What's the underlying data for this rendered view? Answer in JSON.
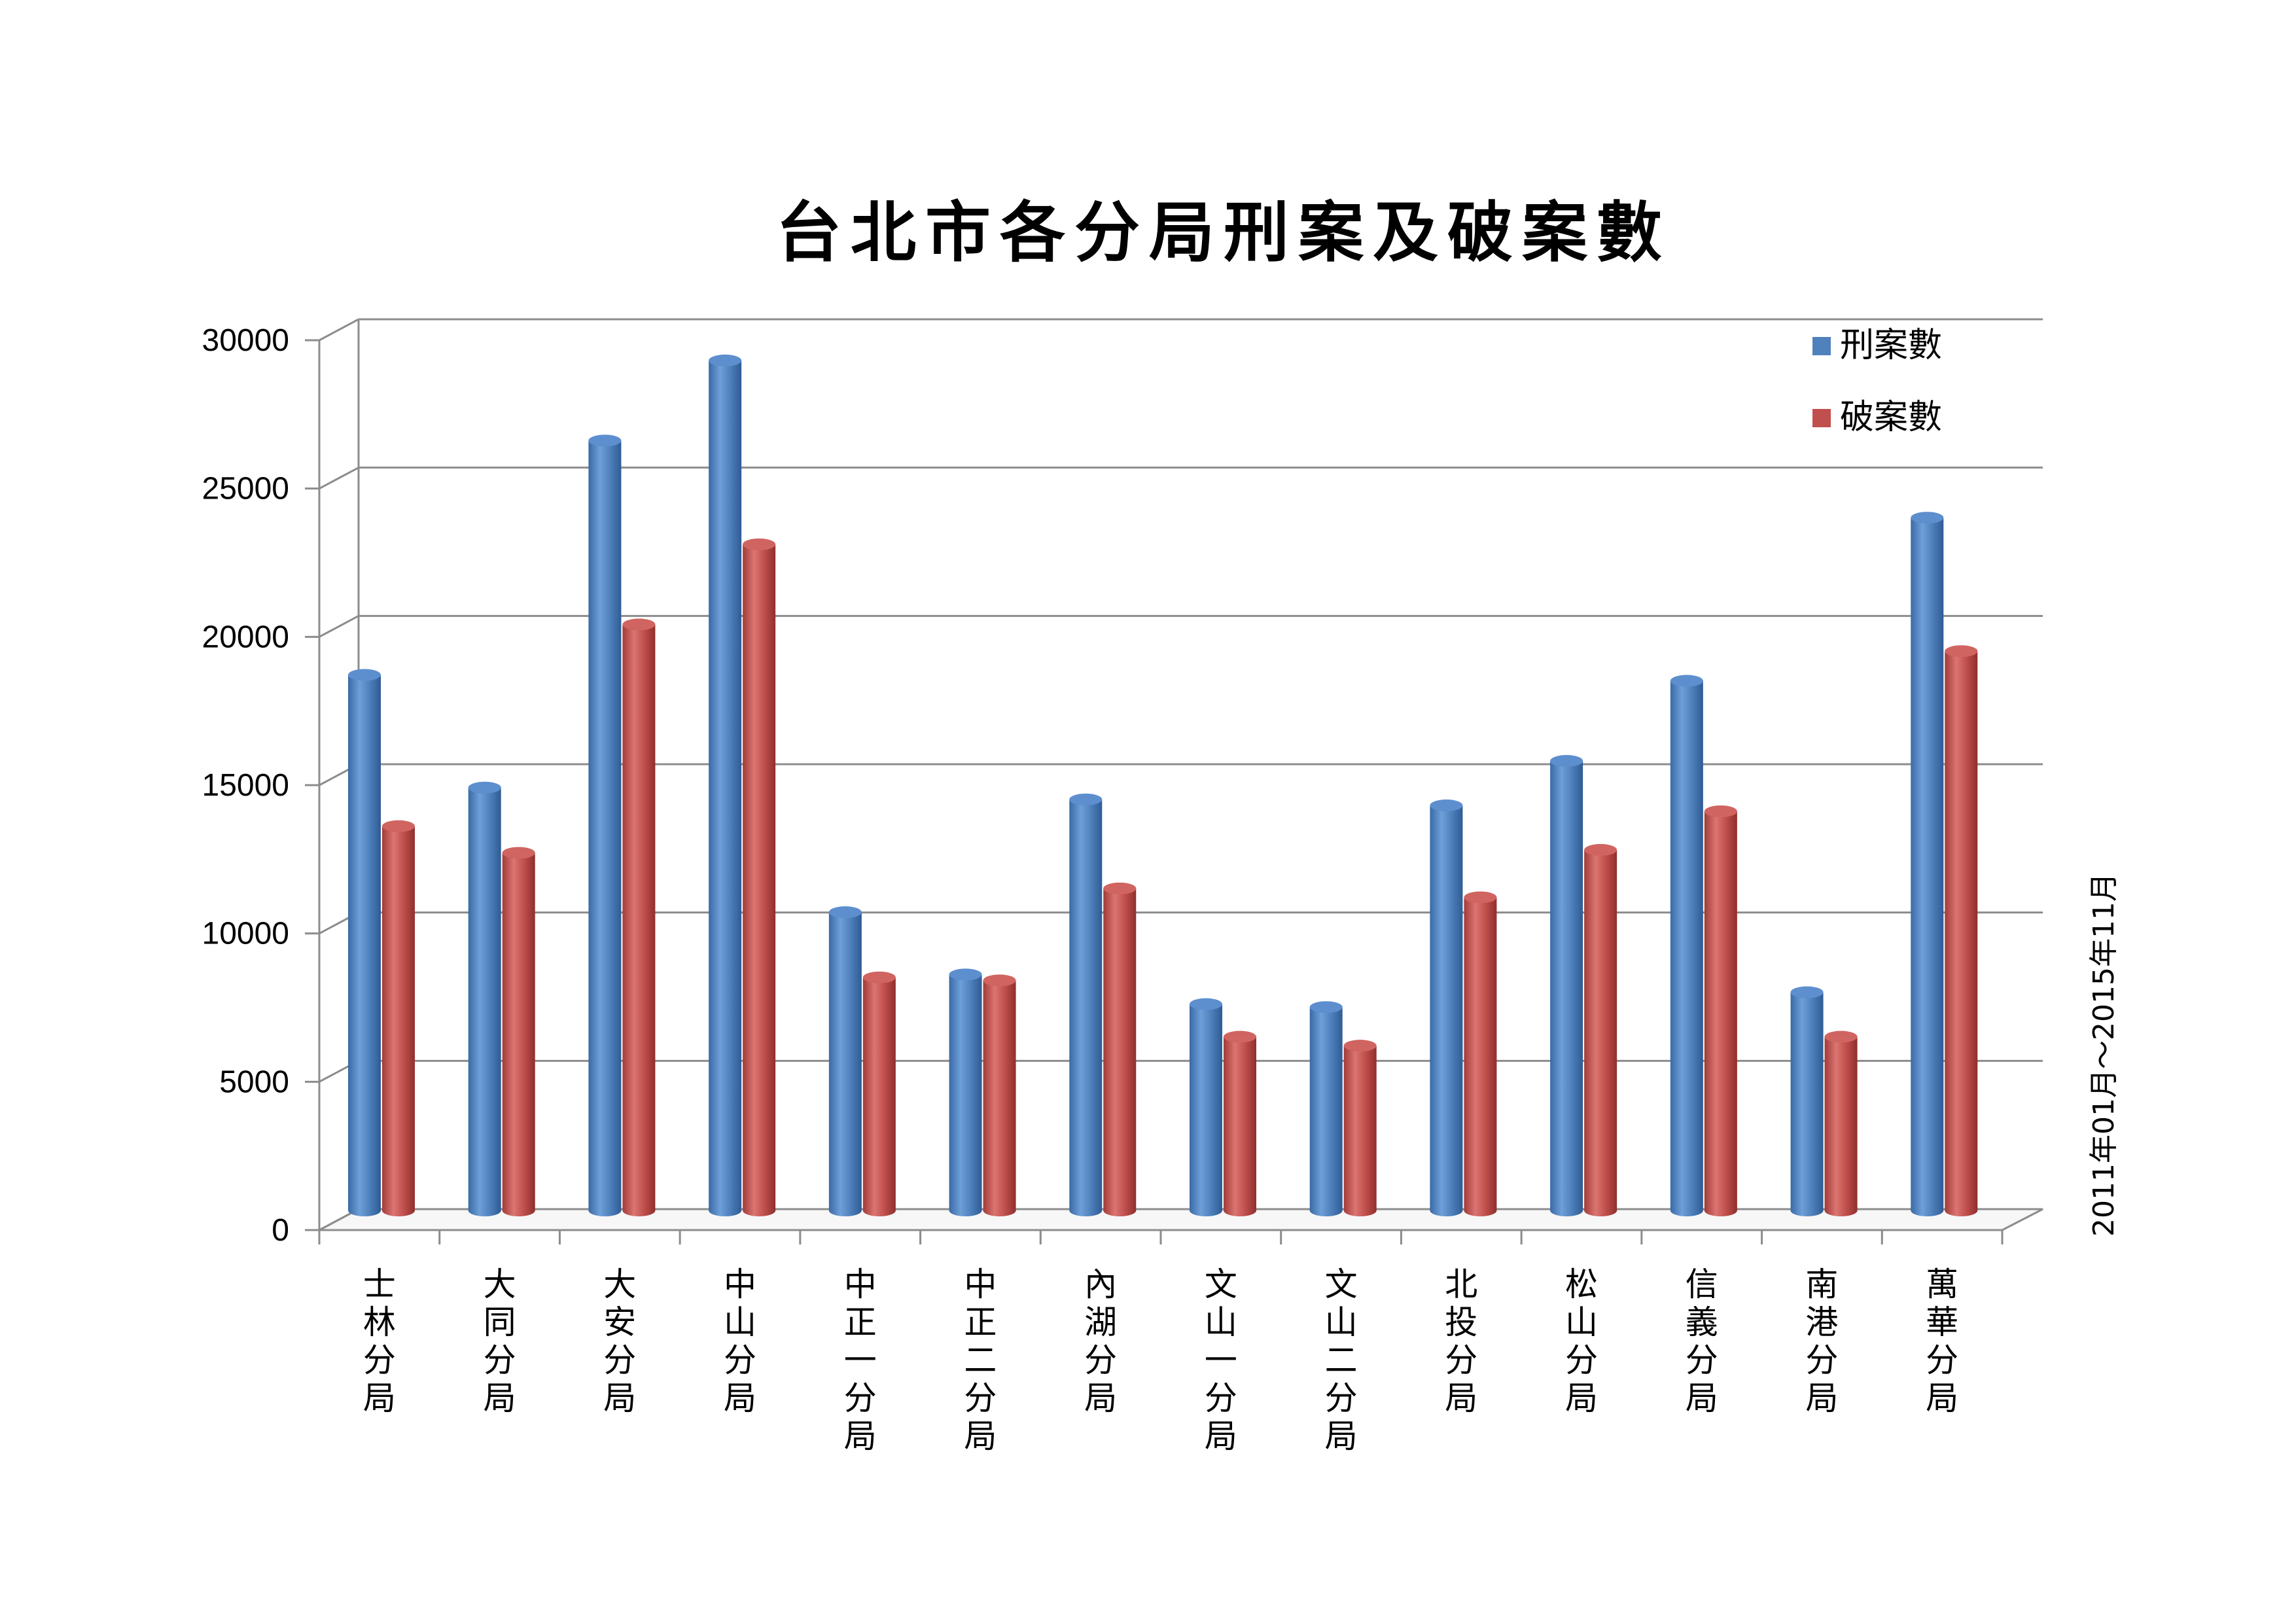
{
  "chart_data": {
    "type": "bar",
    "title": "台北市各分局刑案及破案數",
    "side_note": "2011年01月～2015年11月",
    "categories": [
      "士林分局",
      "大同分局",
      "大安分局",
      "中山分局",
      "中正一分局",
      "中正二分局",
      "內湖分局",
      "文山一分局",
      "文山二分局",
      "北投分局",
      "松山分局",
      "信義分局",
      "南港分局",
      "萬華分局"
    ],
    "series": [
      {
        "name": "刑案數",
        "color": "#4F81BD",
        "values": [
          18100,
          14300,
          26000,
          28700,
          10100,
          8000,
          13900,
          7000,
          6900,
          13700,
          15200,
          17900,
          7400,
          23400
        ]
      },
      {
        "name": "破案數",
        "color": "#C0504D",
        "values": [
          13000,
          12100,
          19800,
          22500,
          7900,
          7800,
          10900,
          5900,
          5600,
          10600,
          12200,
          13500,
          5900,
          18900
        ]
      }
    ],
    "ylim": [
      0,
      30000
    ],
    "yticks": [
      "0",
      "5000",
      "10000",
      "15000",
      "20000",
      "25000",
      "30000"
    ],
    "grid": true,
    "legend_position": "top-right"
  }
}
